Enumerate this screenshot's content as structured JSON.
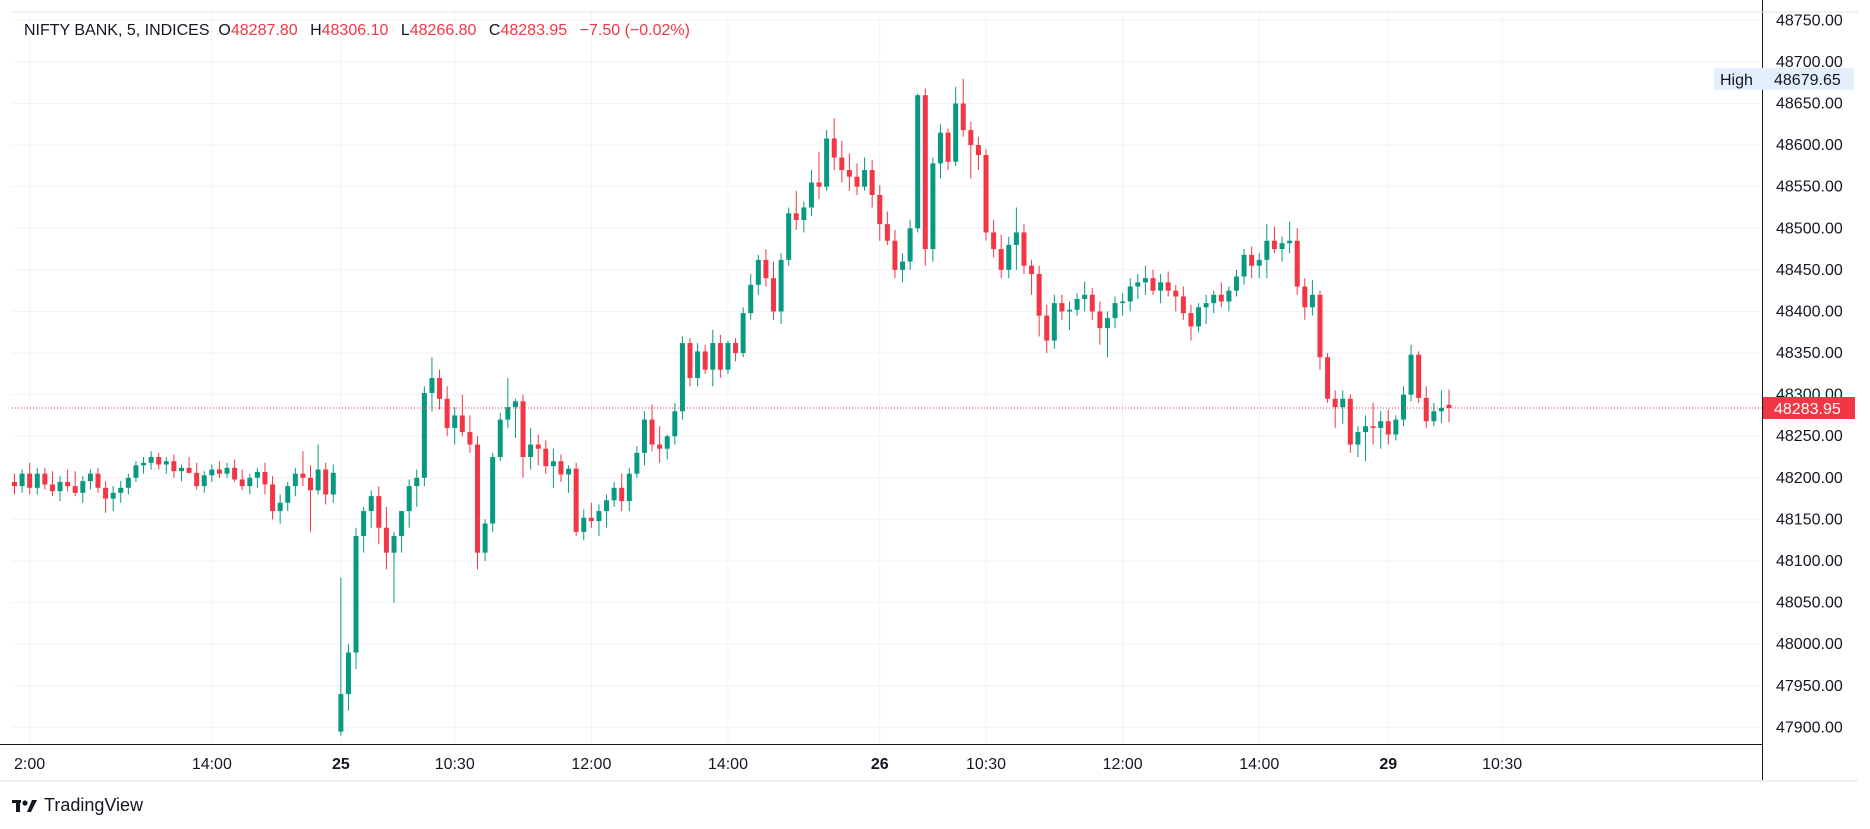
{
  "legend": {
    "symbol": "NIFTY BANK, 5, INDICES",
    "o_label": "O",
    "o": "48287.80",
    "h_label": "H",
    "h": "48306.10",
    "l_label": "L",
    "l": "48266.80",
    "c_label": "C",
    "c": "48283.95",
    "change": "−7.50 (−0.02%)"
  },
  "brand": {
    "name": "TradingView"
  },
  "colors": {
    "up": "#089981",
    "down": "#f23645",
    "grid": "#f0f3fa",
    "text": "#131722",
    "high_bg": "#e3effd"
  },
  "chart_data": {
    "type": "candlestick",
    "title": "NIFTY BANK, 5, INDICES",
    "ylim": [
      47880,
      48760
    ],
    "y_ticks": [
      "48750.00",
      "48700.00",
      "48650.00",
      "48600.00",
      "48550.00",
      "48500.00",
      "48450.00",
      "48400.00",
      "48350.00",
      "48300.00",
      "48250.00",
      "48200.00",
      "48150.00",
      "48100.00",
      "48050.00",
      "48000.00",
      "47950.00",
      "47900.00"
    ],
    "x_ticks": [
      {
        "label": "2:00",
        "index": 2,
        "bold": false
      },
      {
        "label": "14:00",
        "index": 26,
        "bold": false
      },
      {
        "label": "25",
        "index": 43,
        "bold": true
      },
      {
        "label": "10:30",
        "index": 58,
        "bold": false
      },
      {
        "label": "12:00",
        "index": 76,
        "bold": false
      },
      {
        "label": "14:00",
        "index": 94,
        "bold": false
      },
      {
        "label": "26",
        "index": 114,
        "bold": true
      },
      {
        "label": "10:30",
        "index": 128,
        "bold": false
      },
      {
        "label": "12:00",
        "index": 146,
        "bold": false
      },
      {
        "label": "14:00",
        "index": 164,
        "bold": false
      },
      {
        "label": "29",
        "index": 181,
        "bold": true
      },
      {
        "label": "10:30",
        "index": 196,
        "bold": false
      }
    ],
    "last_price": "48283.95",
    "last_value": 48283.95,
    "high_label": "High",
    "high_value": "48679.65",
    "high_numeric": 48679.65,
    "candles": [
      [
        48195,
        48205,
        48180,
        48190
      ],
      [
        48190,
        48210,
        48182,
        48205
      ],
      [
        48205,
        48218,
        48180,
        48188
      ],
      [
        48188,
        48212,
        48180,
        48205
      ],
      [
        48205,
        48212,
        48186,
        48192
      ],
      [
        48192,
        48208,
        48178,
        48184
      ],
      [
        48184,
        48202,
        48172,
        48195
      ],
      [
        48195,
        48210,
        48184,
        48190
      ],
      [
        48190,
        48208,
        48178,
        48182
      ],
      [
        48182,
        48202,
        48170,
        48196
      ],
      [
        48196,
        48210,
        48186,
        48205
      ],
      [
        48205,
        48212,
        48182,
        48188
      ],
      [
        48188,
        48196,
        48158,
        48175
      ],
      [
        48175,
        48190,
        48160,
        48182
      ],
      [
        48182,
        48196,
        48170,
        48188
      ],
      [
        48188,
        48205,
        48180,
        48200
      ],
      [
        48200,
        48220,
        48195,
        48215
      ],
      [
        48215,
        48225,
        48205,
        48218
      ],
      [
        48218,
        48232,
        48210,
        48225
      ],
      [
        48225,
        48230,
        48210,
        48216
      ],
      [
        48216,
        48225,
        48205,
        48220
      ],
      [
        48220,
        48228,
        48200,
        48208
      ],
      [
        48208,
        48216,
        48196,
        48212
      ],
      [
        48212,
        48225,
        48205,
        48206
      ],
      [
        48206,
        48218,
        48186,
        48190
      ],
      [
        48190,
        48208,
        48182,
        48203
      ],
      [
        48203,
        48216,
        48195,
        48210
      ],
      [
        48210,
        48220,
        48200,
        48205
      ],
      [
        48205,
        48218,
        48200,
        48212
      ],
      [
        48212,
        48222,
        48195,
        48198
      ],
      [
        48198,
        48210,
        48185,
        48190
      ],
      [
        48190,
        48205,
        48180,
        48200
      ],
      [
        48200,
        48212,
        48188,
        48207
      ],
      [
        48207,
        48218,
        48180,
        48192
      ],
      [
        48192,
        48202,
        48150,
        48160
      ],
      [
        48160,
        48180,
        48145,
        48170
      ],
      [
        48170,
        48195,
        48160,
        48190
      ],
      [
        48190,
        48212,
        48178,
        48205
      ],
      [
        48205,
        48232,
        48190,
        48200
      ],
      [
        48200,
        48215,
        48135,
        48185
      ],
      [
        48185,
        48240,
        48180,
        48210
      ],
      [
        48210,
        48218,
        48168,
        48180
      ],
      [
        48180,
        48216,
        48170,
        48206
      ],
      [
        47895,
        48080,
        47890,
        47940
      ],
      [
        47940,
        48000,
        47920,
        47990
      ],
      [
        47990,
        48140,
        47970,
        48130
      ],
      [
        48130,
        48165,
        48110,
        48160
      ],
      [
        48160,
        48185,
        48140,
        48178
      ],
      [
        48178,
        48190,
        48120,
        48140
      ],
      [
        48140,
        48165,
        48090,
        48110
      ],
      [
        48110,
        48135,
        48050,
        48130
      ],
      [
        48130,
        48160,
        48110,
        48160
      ],
      [
        48160,
        48198,
        48140,
        48190
      ],
      [
        48190,
        48210,
        48165,
        48200
      ],
      [
        48200,
        48310,
        48190,
        48302
      ],
      [
        48302,
        48345,
        48280,
        48320
      ],
      [
        48320,
        48330,
        48282,
        48295
      ],
      [
        48295,
        48310,
        48250,
        48260
      ],
      [
        48260,
        48285,
        48240,
        48275
      ],
      [
        48275,
        48300,
        48250,
        48255
      ],
      [
        48255,
        48275,
        48230,
        48240
      ],
      [
        48240,
        48250,
        48090,
        48110
      ],
      [
        48110,
        48150,
        48100,
        48145
      ],
      [
        48145,
        48230,
        48135,
        48225
      ],
      [
        48225,
        48278,
        48220,
        48270
      ],
      [
        48270,
        48320,
        48260,
        48285
      ],
      [
        48285,
        48295,
        48248,
        48292
      ],
      [
        48292,
        48300,
        48200,
        48225
      ],
      [
        48225,
        48260,
        48210,
        48240
      ],
      [
        48240,
        48252,
        48215,
        48235
      ],
      [
        48235,
        48245,
        48205,
        48214
      ],
      [
        48214,
        48235,
        48188,
        48220
      ],
      [
        48220,
        48228,
        48195,
        48204
      ],
      [
        48204,
        48215,
        48182,
        48211
      ],
      [
        48211,
        48218,
        48130,
        48135
      ],
      [
        48135,
        48162,
        48125,
        48152
      ],
      [
        48152,
        48170,
        48140,
        48148
      ],
      [
        48148,
        48168,
        48130,
        48160
      ],
      [
        48160,
        48180,
        48140,
        48173
      ],
      [
        48173,
        48195,
        48165,
        48188
      ],
      [
        48188,
        48205,
        48160,
        48172
      ],
      [
        48172,
        48212,
        48160,
        48205
      ],
      [
        48205,
        48238,
        48200,
        48230
      ],
      [
        48230,
        48280,
        48215,
        48270
      ],
      [
        48270,
        48288,
        48232,
        48240
      ],
      [
        48240,
        48262,
        48218,
        48235
      ],
      [
        48235,
        48252,
        48222,
        48250
      ],
      [
        48250,
        48290,
        48240,
        48280
      ],
      [
        48280,
        48370,
        48270,
        48362
      ],
      [
        48362,
        48368,
        48310,
        48320
      ],
      [
        48320,
        48362,
        48310,
        48352
      ],
      [
        48352,
        48360,
        48325,
        48330
      ],
      [
        48330,
        48378,
        48310,
        48362
      ],
      [
        48362,
        48372,
        48320,
        48330
      ],
      [
        48330,
        48365,
        48325,
        48362
      ],
      [
        48362,
        48368,
        48340,
        48350
      ],
      [
        48350,
        48405,
        48345,
        48398
      ],
      [
        48398,
        48445,
        48390,
        48432
      ],
      [
        48432,
        48468,
        48420,
        48462
      ],
      [
        48462,
        48475,
        48430,
        48440
      ],
      [
        48440,
        48460,
        48390,
        48400
      ],
      [
        48400,
        48470,
        48385,
        48462
      ],
      [
        48462,
        48525,
        48455,
        48518
      ],
      [
        48518,
        48545,
        48498,
        48510
      ],
      [
        48510,
        48532,
        48495,
        48525
      ],
      [
        48525,
        48570,
        48515,
        48555
      ],
      [
        48555,
        48592,
        48535,
        48550
      ],
      [
        48550,
        48618,
        48545,
        48608
      ],
      [
        48608,
        48632,
        48570,
        48585
      ],
      [
        48585,
        48605,
        48555,
        48570
      ],
      [
        48570,
        48590,
        48545,
        48562
      ],
      [
        48562,
        48578,
        48540,
        48550
      ],
      [
        48550,
        48585,
        48545,
        48570
      ],
      [
        48570,
        48582,
        48525,
        48540
      ],
      [
        48540,
        48552,
        48485,
        48505
      ],
      [
        48505,
        48520,
        48480,
        48485
      ],
      [
        48485,
        48498,
        48440,
        48450
      ],
      [
        48450,
        48470,
        48435,
        48460
      ],
      [
        48460,
        48510,
        48450,
        48500
      ],
      [
        48500,
        48662,
        48495,
        48660
      ],
      [
        48660,
        48668,
        48455,
        48475
      ],
      [
        48475,
        48585,
        48460,
        48578
      ],
      [
        48578,
        48625,
        48560,
        48615
      ],
      [
        48615,
        48620,
        48570,
        48580
      ],
      [
        48580,
        48670,
        48575,
        48650
      ],
      [
        48650,
        48679.65,
        48610,
        48618
      ],
      [
        48618,
        48628,
        48560,
        48600
      ],
      [
        48600,
        48610,
        48570,
        48588
      ],
      [
        48588,
        48595,
        48485,
        48495
      ],
      [
        48495,
        48510,
        48465,
        48475
      ],
      [
        48475,
        48492,
        48440,
        48450
      ],
      [
        48450,
        48490,
        48440,
        48480
      ],
      [
        48480,
        48525,
        48450,
        48495
      ],
      [
        48495,
        48505,
        48445,
        48455
      ],
      [
        48455,
        48462,
        48420,
        48445
      ],
      [
        48445,
        48455,
        48370,
        48395
      ],
      [
        48395,
        48408,
        48350,
        48365
      ],
      [
        48365,
        48420,
        48355,
        48410
      ],
      [
        48410,
        48420,
        48390,
        48400
      ],
      [
        48400,
        48412,
        48378,
        48402
      ],
      [
        48402,
        48422,
        48395,
        48415
      ],
      [
        48415,
        48436,
        48400,
        48420
      ],
      [
        48420,
        48428,
        48390,
        48400
      ],
      [
        48400,
        48412,
        48360,
        48380
      ],
      [
        48380,
        48400,
        48345,
        48392
      ],
      [
        48392,
        48418,
        48380,
        48410
      ],
      [
        48410,
        48422,
        48395,
        48412
      ],
      [
        48412,
        48440,
        48400,
        48430
      ],
      [
        48430,
        48445,
        48415,
        48435
      ],
      [
        48435,
        48455,
        48420,
        48440
      ],
      [
        48440,
        48450,
        48420,
        48425
      ],
      [
        48425,
        48445,
        48410,
        48435
      ],
      [
        48435,
        48448,
        48418,
        48425
      ],
      [
        48425,
        48432,
        48400,
        48418
      ],
      [
        48418,
        48430,
        48390,
        48398
      ],
      [
        48398,
        48408,
        48365,
        48382
      ],
      [
        48382,
        48410,
        48375,
        48405
      ],
      [
        48405,
        48420,
        48385,
        48410
      ],
      [
        48410,
        48425,
        48398,
        48420
      ],
      [
        48420,
        48435,
        48405,
        48412
      ],
      [
        48412,
        48430,
        48400,
        48425
      ],
      [
        48425,
        48450,
        48418,
        48442
      ],
      [
        48442,
        48475,
        48432,
        48468
      ],
      [
        48468,
        48478,
        48440,
        48455
      ],
      [
        48455,
        48470,
        48440,
        48462
      ],
      [
        48462,
        48505,
        48440,
        48485
      ],
      [
        48485,
        48502,
        48470,
        48475
      ],
      [
        48475,
        48490,
        48460,
        48482
      ],
      [
        48482,
        48508,
        48470,
        48485
      ],
      [
        48485,
        48500,
        48420,
        48430
      ],
      [
        48430,
        48440,
        48390,
        48405
      ],
      [
        48405,
        48438,
        48395,
        48420
      ],
      [
        48420,
        48425,
        48330,
        48345
      ],
      [
        48345,
        48350,
        48290,
        48295
      ],
      [
        48295,
        48305,
        48260,
        48285
      ],
      [
        48285,
        48305,
        48265,
        48295
      ],
      [
        48295,
        48300,
        48230,
        48240
      ],
      [
        48240,
        48262,
        48225,
        48255
      ],
      [
        48255,
        48275,
        48220,
        48262
      ],
      [
        48262,
        48290,
        48240,
        48260
      ],
      [
        48260,
        48280,
        48235,
        48268
      ],
      [
        48268,
        48282,
        48240,
        48252
      ],
      [
        48252,
        48275,
        48245,
        48270
      ],
      [
        48270,
        48310,
        48262,
        48300
      ],
      [
        48300,
        48360,
        48292,
        48348
      ],
      [
        48348,
        48352,
        48290,
        48296
      ],
      [
        48296,
        48310,
        48260,
        48268
      ],
      [
        48268,
        48290,
        48262,
        48280
      ],
      [
        48280,
        48305,
        48266,
        48284
      ],
      [
        48287.8,
        48306.1,
        48266.8,
        48283.95
      ]
    ]
  }
}
